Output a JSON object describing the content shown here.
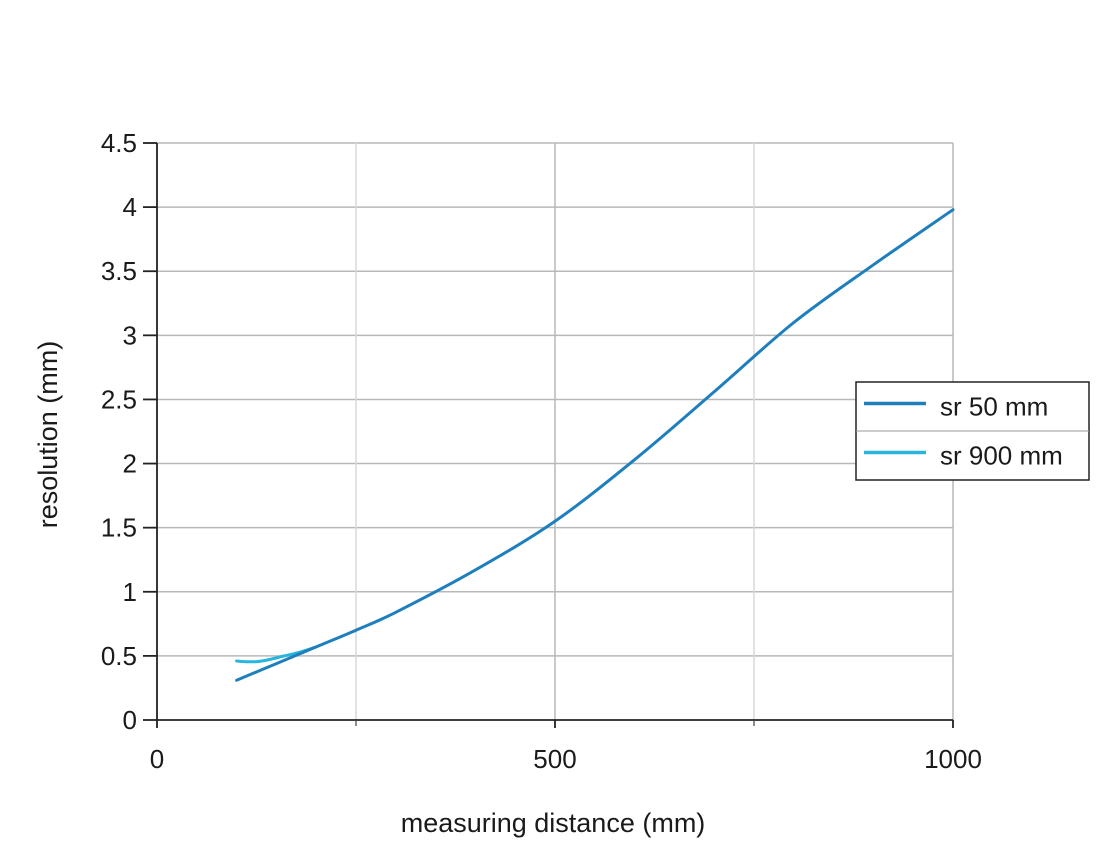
{
  "chart_data": {
    "type": "line",
    "title": "",
    "xlabel": "measuring distance (mm)",
    "ylabel": "resolution (mm)",
    "xlim": [
      0,
      1000
    ],
    "ylim": [
      0,
      4.5
    ],
    "x_ticks": [
      0,
      500,
      1000
    ],
    "x_tick_labels": [
      "0",
      "500",
      "1000"
    ],
    "x_minor_grid": [
      250,
      750
    ],
    "y_ticks": [
      0,
      0.5,
      1,
      1.5,
      2,
      2.5,
      3,
      3.5,
      4,
      4.5
    ],
    "y_tick_labels": [
      "0",
      "0.5",
      "1",
      "1.5",
      "2",
      "2.5",
      "3",
      "3.5",
      "4",
      "4.5"
    ],
    "grid": true,
    "legend_position": "right",
    "series": [
      {
        "name": "sr 50 mm",
        "color": "#1f7fbd",
        "x": [
          100,
          150,
          200,
          250,
          300,
          400,
          500,
          600,
          700,
          800,
          900,
          1000
        ],
        "y": [
          0.31,
          0.44,
          0.57,
          0.7,
          0.84,
          1.17,
          1.55,
          2.03,
          2.56,
          3.1,
          3.55,
          3.98
        ]
      },
      {
        "name": "sr 900 mm",
        "color": "#29b6dc",
        "x": [
          100,
          110,
          125,
          140,
          160,
          180,
          200
        ],
        "y": [
          0.46,
          0.455,
          0.455,
          0.47,
          0.5,
          0.53,
          0.57
        ]
      }
    ]
  }
}
